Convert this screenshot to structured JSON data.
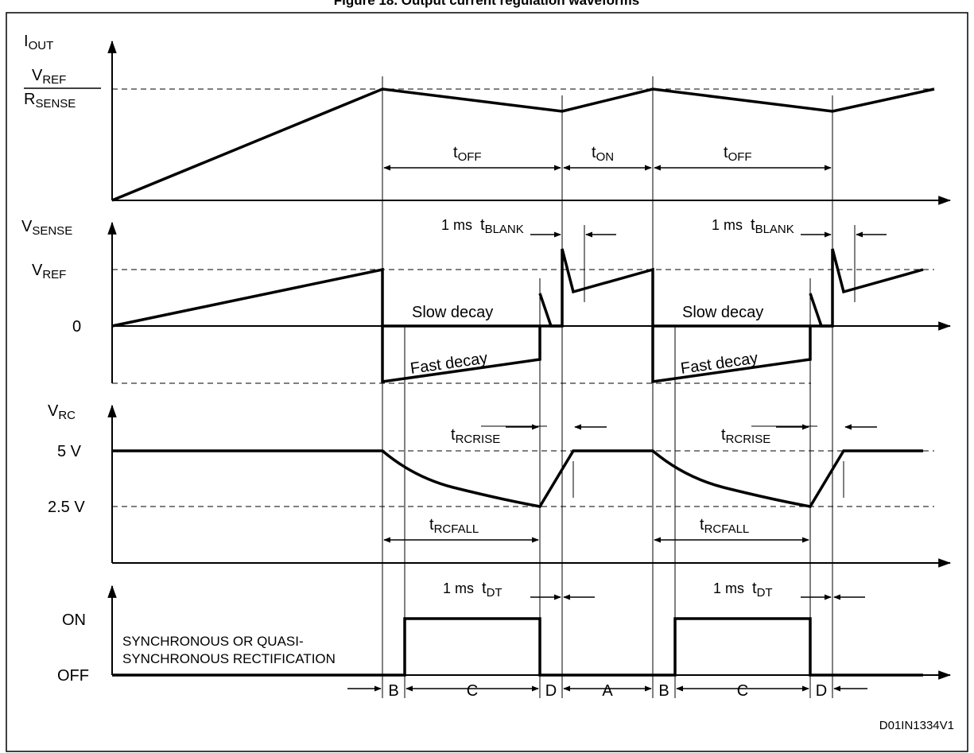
{
  "figure": {
    "title_partial": "Figure 18. Output current regulation waveforms",
    "code": "D01IN1334V1"
  },
  "panel_iout": {
    "axis_label_main": "I",
    "axis_label_sub": "OUT",
    "level_num_main": "V",
    "level_num_sub": "REF",
    "level_den_main": "R",
    "level_den_sub": "SENSE",
    "toff_1_main": "t",
    "toff_1_sub": "OFF",
    "ton_main": "t",
    "ton_sub": "ON",
    "toff_2_main": "t",
    "toff_2_sub": "OFF"
  },
  "panel_vsense": {
    "axis_label_main": "V",
    "axis_label_sub": "SENSE",
    "vref_main": "V",
    "vref_sub": "REF",
    "zero": "0",
    "blank_1_pre": "1 ms",
    "blank_1_main": "t",
    "blank_1_sub": "BLANK",
    "blank_2_pre": "1 ms",
    "blank_2_main": "t",
    "blank_2_sub": "BLANK",
    "slow_1": "Slow decay",
    "slow_2": "Slow decay",
    "fast_1": "Fast decay",
    "fast_2": "Fast decay"
  },
  "panel_vrc": {
    "axis_label_main": "V",
    "axis_label_sub": "RC",
    "level_5v": "5 V",
    "level_25v": "2.5 V",
    "rise_1_main": "t",
    "rise_1_sub": "RCRISE",
    "rise_2_main": "t",
    "rise_2_sub": "RCRISE",
    "fall_1_main": "t",
    "fall_1_sub": "RCFALL",
    "fall_2_main": "t",
    "fall_2_sub": "RCFALL"
  },
  "panel_sync": {
    "on": "ON",
    "off": "OFF",
    "note_line1": "SYNCHRONOUS OR QUASI-",
    "note_line2": "SYNCHRONOUS RECTIFICATION",
    "dt_1_pre": "1 ms",
    "dt_1_main": "t",
    "dt_1_sub": "DT",
    "dt_2_pre": "1 ms",
    "dt_2_main": "t",
    "dt_2_sub": "DT"
  },
  "phases": [
    "B",
    "C",
    "D",
    "A",
    "B",
    "C",
    "D"
  ]
}
